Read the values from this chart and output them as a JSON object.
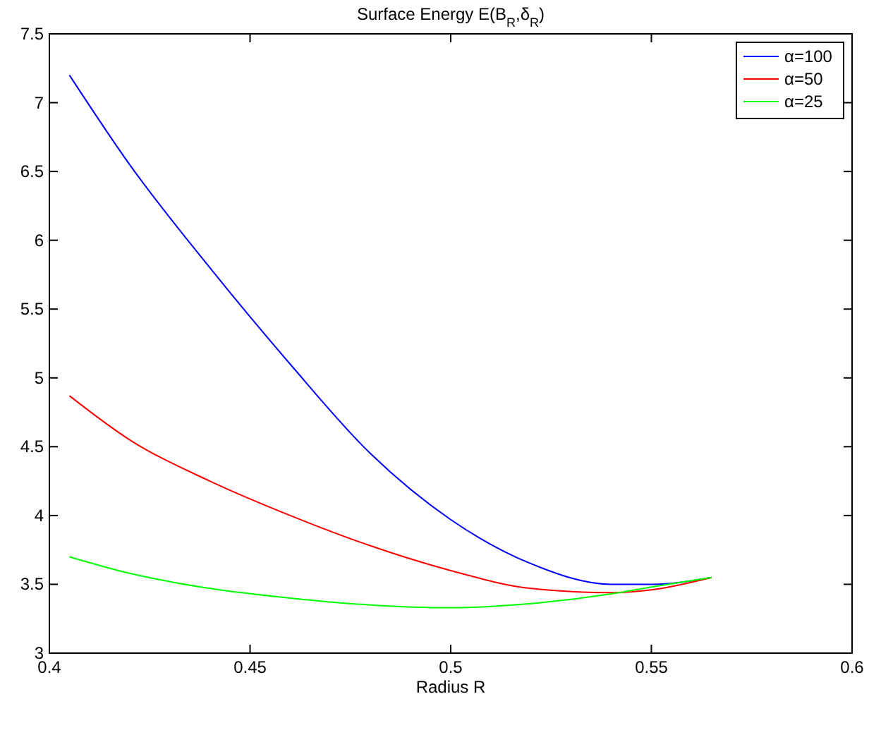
{
  "chart_data": {
    "type": "line",
    "title": "Surface Energy E(B$_{R}$,δ$_{R}$)",
    "xlabel": "Radius R",
    "xlim": [
      0.4,
      0.6
    ],
    "xticks": [
      0.4,
      0.45,
      0.5,
      0.55,
      0.6
    ],
    "ylim": [
      3,
      7.5
    ],
    "yticks": [
      3,
      3.5,
      4,
      4.5,
      5,
      5.5,
      6,
      6.5,
      7,
      7.5
    ],
    "x": [
      0.405,
      0.42,
      0.44,
      0.46,
      0.48,
      0.5,
      0.52,
      0.54,
      0.55,
      0.565
    ],
    "series": [
      {
        "name": "α=100",
        "color": "#0000ff",
        "values": [
          7.2,
          6.55,
          5.8,
          5.1,
          4.45,
          3.97,
          3.65,
          3.5,
          3.5,
          3.55
        ]
      },
      {
        "name": "α=50",
        "color": "#ff0000",
        "values": [
          4.87,
          4.55,
          4.25,
          4.0,
          3.78,
          3.6,
          3.47,
          3.44,
          3.46,
          3.55
        ]
      },
      {
        "name": "α=25",
        "color": "#00ff00",
        "values": [
          3.7,
          3.58,
          3.47,
          3.4,
          3.35,
          3.33,
          3.36,
          3.43,
          3.48,
          3.55
        ]
      }
    ],
    "legend": "top right",
    "grid": false,
    "marker": "none",
    "line_style": "solid"
  }
}
